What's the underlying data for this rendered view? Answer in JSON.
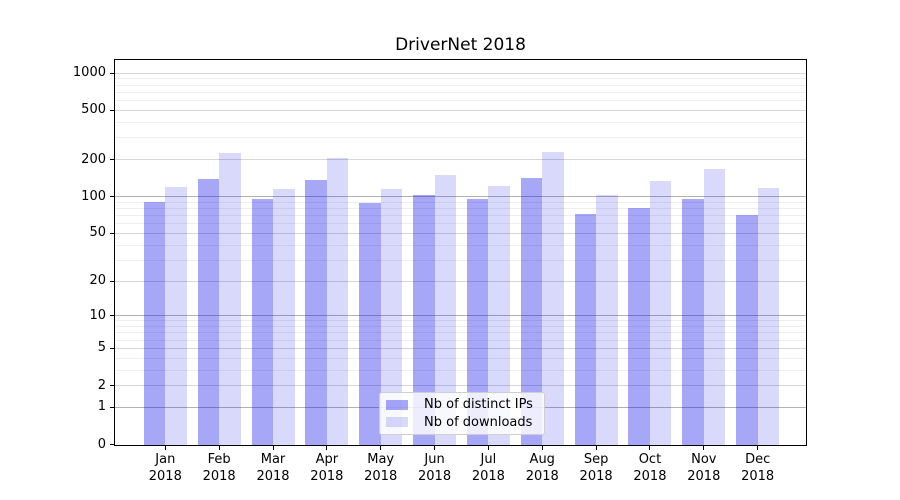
{
  "chart_data": {
    "type": "bar",
    "title": "DriverNet 2018",
    "categories": [
      "Jan",
      "Feb",
      "Mar",
      "Apr",
      "May",
      "Jun",
      "Jul",
      "Aug",
      "Sep",
      "Oct",
      "Nov",
      "Dec"
    ],
    "x_year_label": "2018",
    "series": [
      {
        "name": "Nb of distinct IPs",
        "color": "rgba(10,10,235,0.36)",
        "values": [
          91,
          139,
          96,
          137,
          89,
          104,
          96,
          143,
          72,
          81,
          96,
          71
        ]
      },
      {
        "name": "Nb of downloads",
        "color": "rgba(10,10,235,0.155)",
        "values": [
          119,
          227,
          115,
          207,
          116,
          149,
          122,
          230,
          104,
          133,
          168,
          118
        ]
      }
    ],
    "yscale": "symlog (log1p)",
    "yticks": [
      0,
      1,
      2,
      5,
      10,
      20,
      50,
      100,
      200,
      500,
      1000
    ],
    "ylim": [
      0,
      1300
    ],
    "grid": true,
    "legend_position": "lower center"
  }
}
